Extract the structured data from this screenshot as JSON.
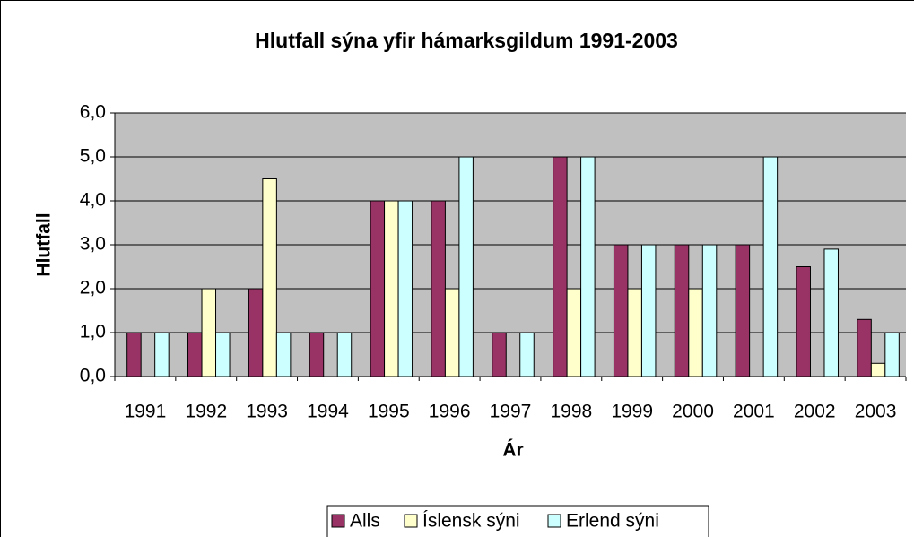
{
  "chart_data": {
    "type": "bar",
    "title": "Hlutfall sýna yfir hámarksgildum 1991-2003",
    "x_label": "Ár",
    "y_label": "Hlutfall",
    "categories": [
      "1991",
      "1992",
      "1993",
      "1994",
      "1995",
      "1996",
      "1997",
      "1998",
      "1999",
      "2000",
      "2001",
      "2002",
      "2003"
    ],
    "series": [
      {
        "name": "Alls",
        "color": "#993366",
        "values": [
          1,
          1,
          2,
          1,
          4,
          4,
          1,
          5,
          3,
          3,
          3,
          2.5,
          1.3
        ]
      },
      {
        "name": "Íslensk sýni",
        "color": "#FFFFCC",
        "values": [
          0,
          2,
          4.5,
          0,
          4,
          2,
          0,
          2,
          2,
          2,
          0,
          0,
          0.3
        ]
      },
      {
        "name": "Erlend sýni",
        "color": "#CCFFFF",
        "values": [
          1,
          1,
          1,
          1,
          4,
          5,
          1,
          5,
          3,
          3,
          5,
          2.9,
          1
        ]
      }
    ],
    "ylim": [
      0,
      6
    ],
    "yticks": [
      {
        "value": 0,
        "label": "0,0"
      },
      {
        "value": 1,
        "label": "1,0"
      },
      {
        "value": 2,
        "label": "2,0"
      },
      {
        "value": 3,
        "label": "3,0"
      },
      {
        "value": 4,
        "label": "4,0"
      },
      {
        "value": 5,
        "label": "5,0"
      },
      {
        "value": 6,
        "label": "6,0"
      }
    ],
    "grid": true,
    "legend": "bottom"
  }
}
